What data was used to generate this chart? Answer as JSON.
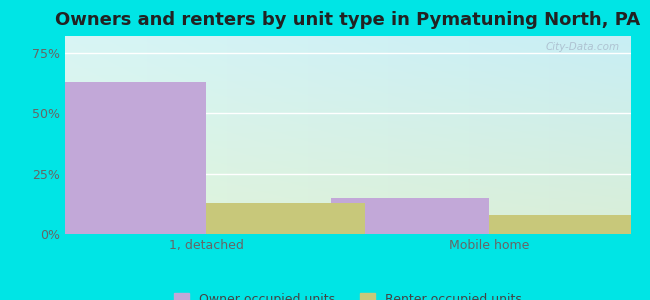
{
  "title": "Owners and renters by unit type in Pymatuning North, PA",
  "categories": [
    "1, detached",
    "Mobile home"
  ],
  "owner_values": [
    63,
    15
  ],
  "renter_values": [
    13,
    8
  ],
  "owner_color": "#c2a8d8",
  "renter_color": "#c8c87a",
  "yticks": [
    0,
    25,
    50,
    75
  ],
  "ytick_labels": [
    "0%",
    "25%",
    "50%",
    "75%"
  ],
  "ylim": [
    0,
    82
  ],
  "bar_width": 0.28,
  "bg_top_left": "#d8f5f5",
  "bg_bottom_right": "#e8f5e0",
  "fig_bg": "#00e5e5",
  "watermark": "City-Data.com",
  "legend_owner": "Owner occupied units",
  "legend_renter": "Renter occupied units",
  "title_fontsize": 13,
  "tick_fontsize": 9,
  "legend_fontsize": 9
}
